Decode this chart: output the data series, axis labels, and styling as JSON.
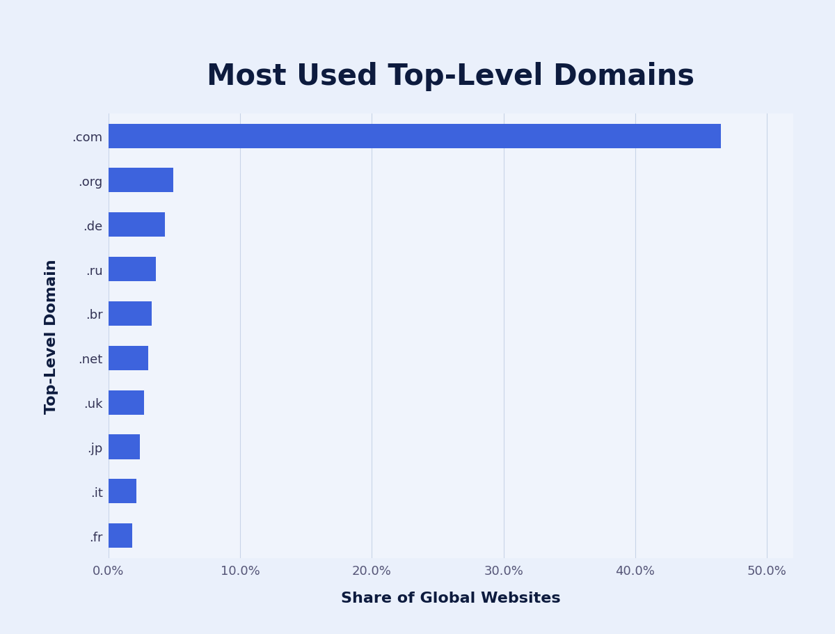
{
  "title": "Most Used Top-Level Domains",
  "categories": [
    ".fr",
    ".it",
    ".jp",
    ".uk",
    ".net",
    ".br",
    ".ru",
    ".de",
    ".org",
    ".com"
  ],
  "values": [
    1.8,
    2.1,
    2.4,
    2.7,
    3.0,
    3.3,
    3.6,
    4.3,
    4.9,
    46.5
  ],
  "bar_color": "#3d63dd",
  "background_color": "#eaf0fb",
  "plot_background_color": "#f0f4fc",
  "title_color": "#0d1b3e",
  "label_color": "#333355",
  "tick_color": "#555577",
  "xlabel": "Share of Global Websites",
  "ylabel": "Top-Level Domain",
  "xlim": [
    0,
    52
  ],
  "title_fontsize": 30,
  "label_fontsize": 16,
  "tick_fontsize": 13,
  "bar_height": 0.55,
  "grid_color": "#c8d4e8"
}
